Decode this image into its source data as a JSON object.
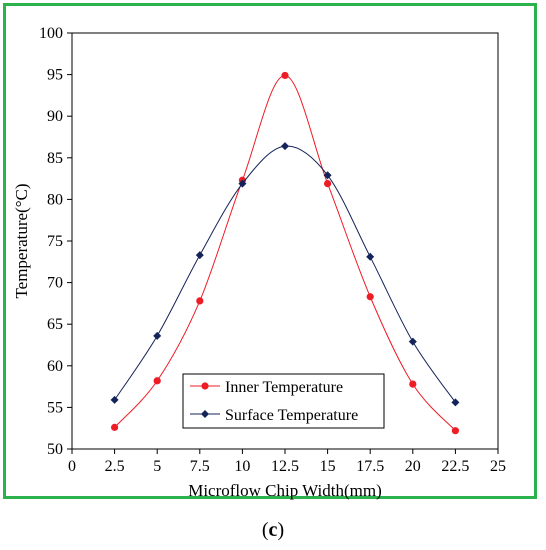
{
  "colors": {
    "frame": "#2bb24c",
    "inner": "#ee1c25",
    "surface": "#14235a"
  },
  "caption": {
    "open": "(",
    "letter": "c",
    "close": ")"
  },
  "chart_data": {
    "type": "line",
    "xlabel": "Microflow Chip Width(mm)",
    "ylabel": "Temperature(°C)",
    "xlim": [
      0,
      25
    ],
    "ylim": [
      50,
      100
    ],
    "xticks": [
      0,
      2.5,
      5,
      7.5,
      10,
      12.5,
      15,
      17.5,
      20,
      22.5,
      25
    ],
    "xtick_labels": [
      "0",
      "2.5",
      "5",
      "7.5",
      "10",
      "12.5",
      "15",
      "17.5",
      "20",
      "22.5",
      "25"
    ],
    "yticks": [
      50,
      55,
      60,
      65,
      70,
      75,
      80,
      85,
      90,
      95,
      100
    ],
    "ytick_labels": [
      "50",
      "55",
      "60",
      "65",
      "70",
      "75",
      "80",
      "85",
      "90",
      "95",
      "100"
    ],
    "grid": false,
    "legend_position": "bottom-center",
    "series": [
      {
        "name": "Inner Temperature",
        "marker": "circle",
        "x": [
          2.5,
          5,
          7.5,
          10,
          12.5,
          15,
          17.5,
          20,
          22.5
        ],
        "y": [
          52.6,
          58.2,
          67.8,
          82.3,
          94.9,
          81.9,
          68.3,
          57.8,
          52.2
        ]
      },
      {
        "name": "Surface Temperature",
        "marker": "diamond",
        "x": [
          2.5,
          5,
          7.5,
          10,
          12.5,
          15,
          17.5,
          20,
          22.5
        ],
        "y": [
          55.9,
          63.6,
          73.3,
          81.9,
          86.4,
          82.9,
          73.1,
          62.9,
          55.6
        ]
      }
    ]
  }
}
